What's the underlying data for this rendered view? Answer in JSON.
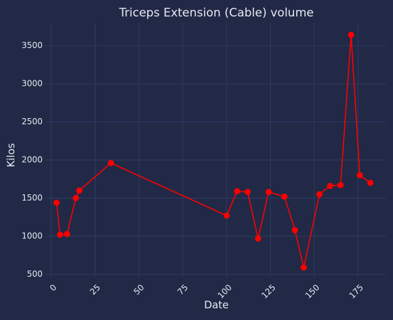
{
  "chart_data": {
    "type": "line",
    "title": "Triceps Extension (Cable) volume",
    "xlabel": "Date",
    "ylabel": "Kilos",
    "xlim": [
      -3,
      191
    ],
    "ylim": [
      460,
      3800
    ],
    "xticks": [
      0,
      25,
      50,
      75,
      100,
      125,
      150,
      175
    ],
    "yticks": [
      500,
      1000,
      1500,
      2000,
      2500,
      3000,
      3500
    ],
    "grid": true,
    "legend": "none",
    "series": [
      {
        "color": "#ff0000",
        "marker": "circle",
        "points": [
          {
            "x": 3,
            "y": 1440
          },
          {
            "x": 5,
            "y": 1020
          },
          {
            "x": 9,
            "y": 1030
          },
          {
            "x": 14,
            "y": 1500
          },
          {
            "x": 16,
            "y": 1600
          },
          {
            "x": 34,
            "y": 1960
          },
          {
            "x": 100,
            "y": 1270
          },
          {
            "x": 106,
            "y": 1590
          },
          {
            "x": 112,
            "y": 1580
          },
          {
            "x": 118,
            "y": 970
          },
          {
            "x": 124,
            "y": 1580
          },
          {
            "x": 133,
            "y": 1520
          },
          {
            "x": 139,
            "y": 1080
          },
          {
            "x": 144,
            "y": 590
          },
          {
            "x": 153,
            "y": 1550
          },
          {
            "x": 159,
            "y": 1660
          },
          {
            "x": 165,
            "y": 1670
          },
          {
            "x": 171,
            "y": 3640
          },
          {
            "x": 176,
            "y": 1800
          },
          {
            "x": 182,
            "y": 1700
          }
        ]
      }
    ]
  }
}
